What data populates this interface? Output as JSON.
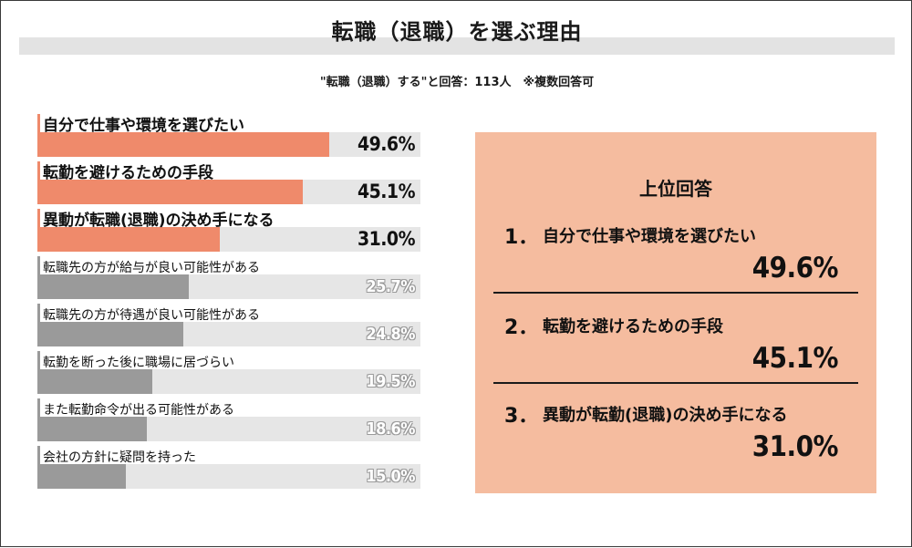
{
  "chart_data": {
    "type": "bar",
    "title": "転職（退職）を選ぶ理由",
    "subtitle": "\"転職（退職）する\"と回答：113人　※複数回答可",
    "categories": [
      "自分で仕事や環境を選びたい",
      "転勤を避けるための手段",
      "異動が転職(退職)の決め手になる",
      "転職先の方が給与が良い可能性がある",
      "転職先の方が待遇が良い可能性がある",
      "転勤を断った後に職場に居づらい",
      "また転勤命令が出る可能性がある",
      "会社の方針に疑問を持った"
    ],
    "values": [
      49.6,
      45.1,
      31.0,
      25.7,
      24.8,
      19.5,
      18.6,
      15.0
    ],
    "value_labels": [
      "49.6%",
      "45.1%",
      "31.0%",
      "25.7%",
      "24.8%",
      "19.5%",
      "18.6%",
      "15.0%"
    ],
    "xlim": [
      0,
      100
    ],
    "highlight_count": 3,
    "colors": {
      "highlight": "#ef8a6b",
      "normal": "#9a9a9a",
      "track": "#e6e6e6",
      "panel": "#f5bc9f"
    },
    "grid": false,
    "legend": "none"
  },
  "ranking": {
    "heading": "上位回答",
    "items": [
      {
        "num": "1．",
        "text": "自分で仕事や環境を選びたい",
        "value": "49.6%"
      },
      {
        "num": "2．",
        "text": "転勤を避けるための手段",
        "value": "45.1%"
      },
      {
        "num": "3．",
        "text": "異動が転勤(退職)の決め手になる",
        "value": "31.0%"
      }
    ]
  }
}
